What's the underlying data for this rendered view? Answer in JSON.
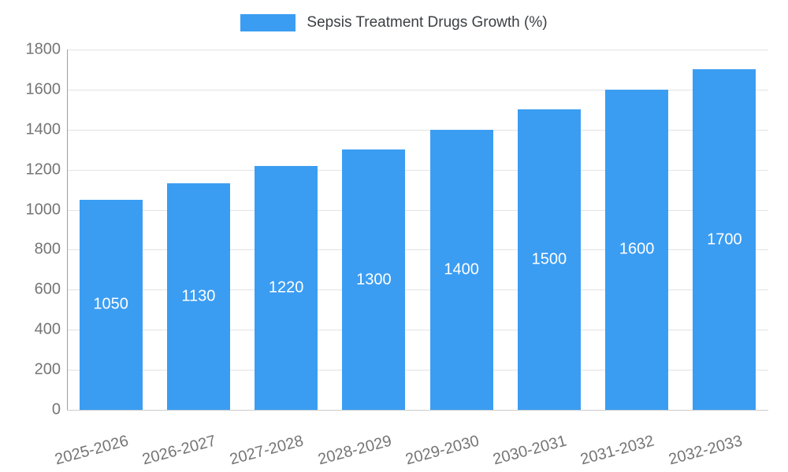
{
  "chart_data": {
    "type": "bar",
    "title": "Sepsis Treatment Drugs Growth (%)",
    "categories": [
      "2025-2026",
      "2026-2027",
      "2027-2028",
      "2028-2029",
      "2029-2030",
      "2030-2031",
      "2031-2032",
      "2032-2033"
    ],
    "values": [
      1050,
      1130,
      1220,
      1300,
      1400,
      1500,
      1600,
      1700
    ],
    "xlabel": "",
    "ylabel": "",
    "ylim": [
      0,
      1800
    ],
    "ytick_step": 200,
    "ytick_labels": [
      "0",
      "200",
      "400",
      "600",
      "800",
      "1000",
      "1200",
      "1400",
      "1600",
      "1800"
    ],
    "grid": "horizontal",
    "legend_position": "top",
    "bar_color": "#3b9df2",
    "value_label_color": "#ffffff",
    "axis_text_color": "#757575",
    "title_color": "#3c4043"
  }
}
